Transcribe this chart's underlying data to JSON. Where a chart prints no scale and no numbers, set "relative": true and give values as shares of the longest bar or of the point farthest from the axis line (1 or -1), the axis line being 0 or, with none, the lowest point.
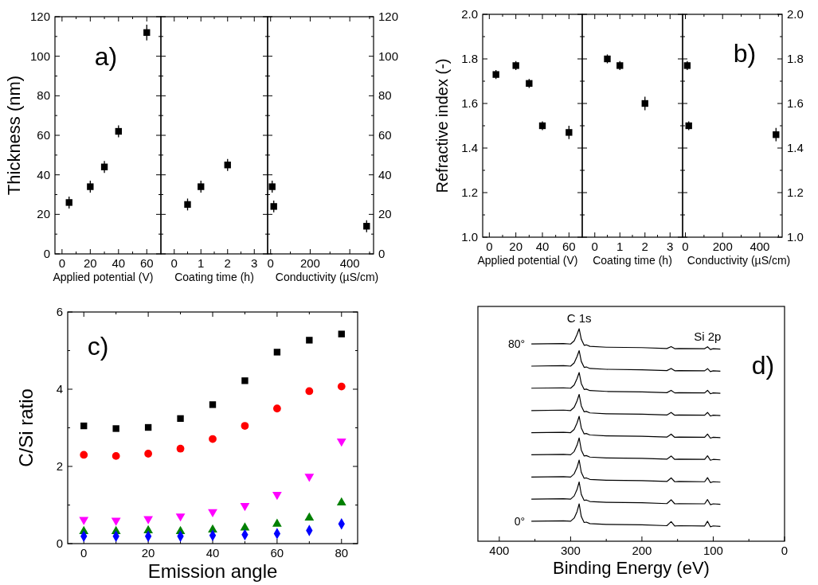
{
  "chart_data": [
    {
      "type": "scatter",
      "x": [
        5,
        20,
        30,
        40,
        60
      ],
      "xlim": [
        -5,
        70
      ],
      "xticks": [
        0,
        {
          "value": 10,
          "label": null
        },
        20,
        {
          "value": 30,
          "label": null
        },
        40,
        {
          "value": 50,
          "label": null
        },
        60
      ],
      "ylim": [
        0,
        120
      ],
      "yticks": [
        0,
        {
          "value": 10,
          "label": null
        },
        20,
        {
          "value": 30,
          "label": null
        },
        40,
        {
          "value": 50,
          "label": null
        },
        60,
        {
          "value": 70,
          "label": null
        },
        80,
        {
          "value": 90,
          "label": null
        },
        100,
        {
          "value": 110,
          "label": null
        },
        120
      ],
      "xlabel": "Applied potential (V)",
      "ylabel": "Thickness (nm)",
      "annotations": [
        "a)"
      ],
      "marker": "square",
      "series": [
        {
          "color": "#000000",
          "values": [
            26,
            34,
            44,
            62,
            112
          ],
          "errors": [
            3,
            3,
            3,
            3,
            4
          ]
        }
      ]
    },
    {
      "type": "scatter",
      "x": [
        0.5,
        1,
        2
      ],
      "xlim": [
        -0.5,
        3.5
      ],
      "xticks": [
        0,
        {
          "value": 0.5,
          "label": null
        },
        1,
        {
          "value": 1.5,
          "label": null
        },
        2,
        {
          "value": 2.5,
          "label": null
        },
        3
      ],
      "ylim": [
        0,
        120
      ],
      "yticks": [
        0,
        {
          "value": 10,
          "label": null
        },
        20,
        {
          "value": 30,
          "label": null
        },
        40,
        {
          "value": 50,
          "label": null
        },
        60,
        {
          "value": 70,
          "label": null
        },
        80,
        {
          "value": 90,
          "label": null
        },
        100,
        {
          "value": 110,
          "label": null
        },
        120
      ],
      "tick_labels": "x",
      "xlabel": "Coating time (h)",
      "marker": "square",
      "series": [
        {
          "color": "#000000",
          "values": [
            25,
            34,
            45
          ],
          "errors": [
            3,
            3,
            3
          ]
        }
      ]
    },
    {
      "type": "scatter",
      "x": [
        8,
        16,
        485
      ],
      "xlim": [
        -15,
        520
      ],
      "xticks": [
        0,
        {
          "value": 100,
          "label": null
        },
        200,
        {
          "value": 300,
          "label": null
        },
        400,
        {
          "value": 500,
          "label": null
        }
      ],
      "y2lim": [
        0,
        120
      ],
      "y2ticks": [
        0,
        {
          "value": 10,
          "label": null
        },
        20,
        {
          "value": 30,
          "label": null
        },
        40,
        {
          "value": 50,
          "label": null
        },
        60,
        {
          "value": 70,
          "label": null
        },
        80,
        {
          "value": 90,
          "label": null
        },
        100,
        {
          "value": 110,
          "label": null
        },
        120
      ],
      "xlabel": "Conductivity (µS/cm)",
      "marker": "square",
      "series": [
        {
          "color": "#000000",
          "axis": "y2",
          "values": [
            34,
            24,
            14
          ],
          "errors": [
            3,
            3,
            3
          ]
        }
      ]
    },
    {
      "type": "scatter",
      "x": [
        5,
        20,
        30,
        40,
        60
      ],
      "xlim": [
        -5,
        70
      ],
      "xticks": [
        0,
        {
          "value": 10,
          "label": null
        },
        20,
        {
          "value": 30,
          "label": null
        },
        40,
        {
          "value": 50,
          "label": null
        },
        60
      ],
      "ylim": [
        1,
        2
      ],
      "yticks": [
        {
          "value": 1,
          "label": "1.0"
        },
        {
          "value": 1.1,
          "label": null
        },
        1.2,
        {
          "value": 1.3,
          "label": null
        },
        1.4,
        {
          "value": 1.5,
          "label": null
        },
        1.6,
        {
          "value": 1.7,
          "label": null
        },
        1.8,
        {
          "value": 1.9,
          "label": null
        },
        {
          "value": 2,
          "label": "2.0"
        }
      ],
      "xlabel": "Applied potential (V)",
      "ylabel": "Refractive index (-)",
      "annotations": [
        "b)"
      ],
      "marker": "square",
      "series": [
        {
          "color": "#000000",
          "values": [
            1.73,
            1.77,
            1.69,
            1.5,
            1.47
          ],
          "errors": [
            0.02,
            0.02,
            0.02,
            0.02,
            0.03
          ]
        }
      ]
    },
    {
      "type": "scatter",
      "x": [
        0.5,
        1,
        2
      ],
      "xlim": [
        -0.5,
        3.5
      ],
      "xticks": [
        0,
        {
          "value": 0.5,
          "label": null
        },
        1,
        {
          "value": 1.5,
          "label": null
        },
        2,
        {
          "value": 2.5,
          "label": null
        },
        3
      ],
      "ylim": [
        1,
        2
      ],
      "yticks": [
        1,
        {
          "value": 1.1,
          "label": null
        },
        1.2,
        {
          "value": 1.3,
          "label": null
        },
        1.4,
        {
          "value": 1.5,
          "label": null
        },
        1.6,
        {
          "value": 1.7,
          "label": null
        },
        1.8,
        {
          "value": 1.9,
          "label": null
        },
        2
      ],
      "tick_labels": "x",
      "xlabel": "Coating time (h)",
      "marker": "square",
      "series": [
        {
          "color": "#000000",
          "values": [
            1.8,
            1.77,
            1.6
          ],
          "errors": [
            0.02,
            0.02,
            0.03
          ]
        }
      ]
    },
    {
      "type": "scatter",
      "x": [
        10,
        18,
        487
      ],
      "xlim": [
        -15,
        520
      ],
      "xticks": [
        0,
        {
          "value": 100,
          "label": null
        },
        200,
        {
          "value": 300,
          "label": null
        },
        400,
        {
          "value": 500,
          "label": null
        }
      ],
      "y2lim": [
        1,
        2
      ],
      "y2ticks": [
        {
          "value": 1,
          "label": "1.0"
        },
        {
          "value": 1.1,
          "label": null
        },
        1.2,
        {
          "value": 1.3,
          "label": null
        },
        1.4,
        {
          "value": 1.5,
          "label": null
        },
        1.6,
        {
          "value": 1.7,
          "label": null
        },
        1.8,
        {
          "value": 1.9,
          "label": null
        },
        {
          "value": 2,
          "label": "2.0"
        }
      ],
      "xlabel": "Conductivity (µS/cm)",
      "marker": "square",
      "series": [
        {
          "color": "#000000",
          "axis": "y2",
          "values": [
            1.77,
            1.5,
            1.46
          ],
          "errors": [
            0.02,
            0.02,
            0.03
          ]
        }
      ]
    },
    {
      "type": "scatter",
      "x": [
        0,
        10,
        20,
        30,
        40,
        50,
        60,
        70,
        80
      ],
      "xlim": [
        -5,
        85
      ],
      "xticks": [
        0,
        {
          "value": 10,
          "label": null
        },
        20,
        {
          "value": 30,
          "label": null
        },
        40,
        {
          "value": 50,
          "label": null
        },
        60,
        {
          "value": 70,
          "label": null
        },
        80
      ],
      "ylim": [
        0,
        6
      ],
      "yticks": [
        0,
        {
          "value": 1,
          "label": null
        },
        2,
        {
          "value": 3,
          "label": null
        },
        4,
        {
          "value": 5,
          "label": null
        },
        6
      ],
      "xlabel": "Emission angle",
      "ylabel": "C/Si ratio",
      "annotations": [
        "c)"
      ],
      "series": [
        {
          "color": "#000000",
          "marker": "square",
          "values": [
            3.05,
            2.98,
            3.01,
            3.24,
            3.6,
            4.22,
            4.96,
            5.27,
            5.43
          ]
        },
        {
          "color": "#ff0000",
          "marker": "circle",
          "values": [
            2.3,
            2.27,
            2.33,
            2.46,
            2.71,
            3.05,
            3.5,
            3.95,
            4.07
          ]
        },
        {
          "color": "#ff00ff",
          "marker": "triangle-down",
          "values": [
            0.62,
            0.6,
            0.64,
            0.71,
            0.82,
            0.98,
            1.27,
            1.74,
            2.65
          ]
        },
        {
          "color": "#008000",
          "marker": "triangle",
          "values": [
            0.32,
            0.32,
            0.34,
            0.32,
            0.36,
            0.41,
            0.51,
            0.67,
            1.06
          ]
        },
        {
          "color": "#0000ff",
          "marker": "diamond",
          "values": [
            0.19,
            0.19,
            0.19,
            0.19,
            0.21,
            0.23,
            0.26,
            0.34,
            0.51
          ]
        }
      ]
    },
    {
      "type": "line",
      "relative": true,
      "x": [
        355,
        310,
        300,
        295,
        291,
        288,
        285,
        281,
        278,
        273,
        250,
        200,
        165,
        159,
        154,
        148,
        112,
        108,
        104,
        100,
        90
      ],
      "xlim": [
        430,
        0
      ],
      "xticks": [
        400,
        {
          "value": 350,
          "label": null
        },
        300,
        {
          "value": 250,
          "label": null
        },
        200,
        {
          "value": 150,
          "label": null
        },
        100,
        {
          "value": 50,
          "label": null
        },
        0
      ],
      "xlabel": "Binding Energy (eV)",
      "annotations": [
        {
          "text": "C 1s",
          "x": 288,
          "y": 1
        },
        {
          "text": "Si 2p",
          "x": 108,
          "y": 0.915
        },
        "d)"
      ],
      "series": [
        {
          "name": "0°",
          "color": "#000000",
          "values": [
            0.094,
            0.096,
            0.094,
            0.109,
            0.139,
            0.176,
            0.116,
            0.088,
            0.09,
            0.083,
            0.079,
            0.077,
            0.073,
            0.092,
            0.072,
            0.073,
            0.072,
            0.094,
            0.068,
            0.072,
            0.07
          ]
        },
        {
          "color": "#000000",
          "values": [
            0.198,
            0.2,
            0.198,
            0.213,
            0.243,
            0.279,
            0.22,
            0.192,
            0.194,
            0.187,
            0.183,
            0.181,
            0.177,
            0.195,
            0.176,
            0.177,
            0.176,
            0.196,
            0.172,
            0.176,
            0.174
          ]
        },
        {
          "color": "#000000",
          "values": [
            0.302,
            0.304,
            0.302,
            0.317,
            0.347,
            0.382,
            0.324,
            0.296,
            0.298,
            0.291,
            0.287,
            0.285,
            0.281,
            0.298,
            0.28,
            0.281,
            0.28,
            0.299,
            0.276,
            0.28,
            0.278
          ]
        },
        {
          "color": "#000000",
          "values": [
            0.407,
            0.409,
            0.407,
            0.422,
            0.452,
            0.486,
            0.429,
            0.401,
            0.403,
            0.396,
            0.392,
            0.39,
            0.386,
            0.401,
            0.385,
            0.386,
            0.385,
            0.402,
            0.381,
            0.385,
            0.383
          ]
        },
        {
          "color": "#000000",
          "values": [
            0.511,
            0.513,
            0.511,
            0.526,
            0.556,
            0.588,
            0.533,
            0.505,
            0.507,
            0.5,
            0.496,
            0.494,
            0.49,
            0.504,
            0.489,
            0.49,
            0.489,
            0.504,
            0.485,
            0.489,
            0.487
          ]
        },
        {
          "color": "#000000",
          "values": [
            0.615,
            0.617,
            0.615,
            0.63,
            0.66,
            0.691,
            0.637,
            0.609,
            0.611,
            0.604,
            0.6,
            0.598,
            0.594,
            0.606,
            0.593,
            0.594,
            0.593,
            0.606,
            0.589,
            0.593,
            0.591
          ]
        },
        {
          "color": "#000000",
          "values": [
            0.72,
            0.722,
            0.72,
            0.735,
            0.765,
            0.794,
            0.742,
            0.714,
            0.716,
            0.709,
            0.705,
            0.703,
            0.699,
            0.71,
            0.698,
            0.699,
            0.698,
            0.71,
            0.694,
            0.698,
            0.696
          ]
        },
        {
          "color": "#000000",
          "values": [
            0.824,
            0.826,
            0.824,
            0.839,
            0.869,
            0.897,
            0.846,
            0.818,
            0.82,
            0.813,
            0.809,
            0.807,
            0.803,
            0.813,
            0.802,
            0.803,
            0.802,
            0.812,
            0.798,
            0.802,
            0.8
          ]
        },
        {
          "name": "80°",
          "color": "#000000",
          "values": [
            0.928,
            0.93,
            0.928,
            0.943,
            0.973,
            1,
            0.95,
            0.922,
            0.924,
            0.917,
            0.913,
            0.911,
            0.907,
            0.916,
            0.906,
            0.907,
            0.906,
            0.915,
            0.902,
            0.906,
            0.904
          ]
        }
      ]
    }
  ]
}
